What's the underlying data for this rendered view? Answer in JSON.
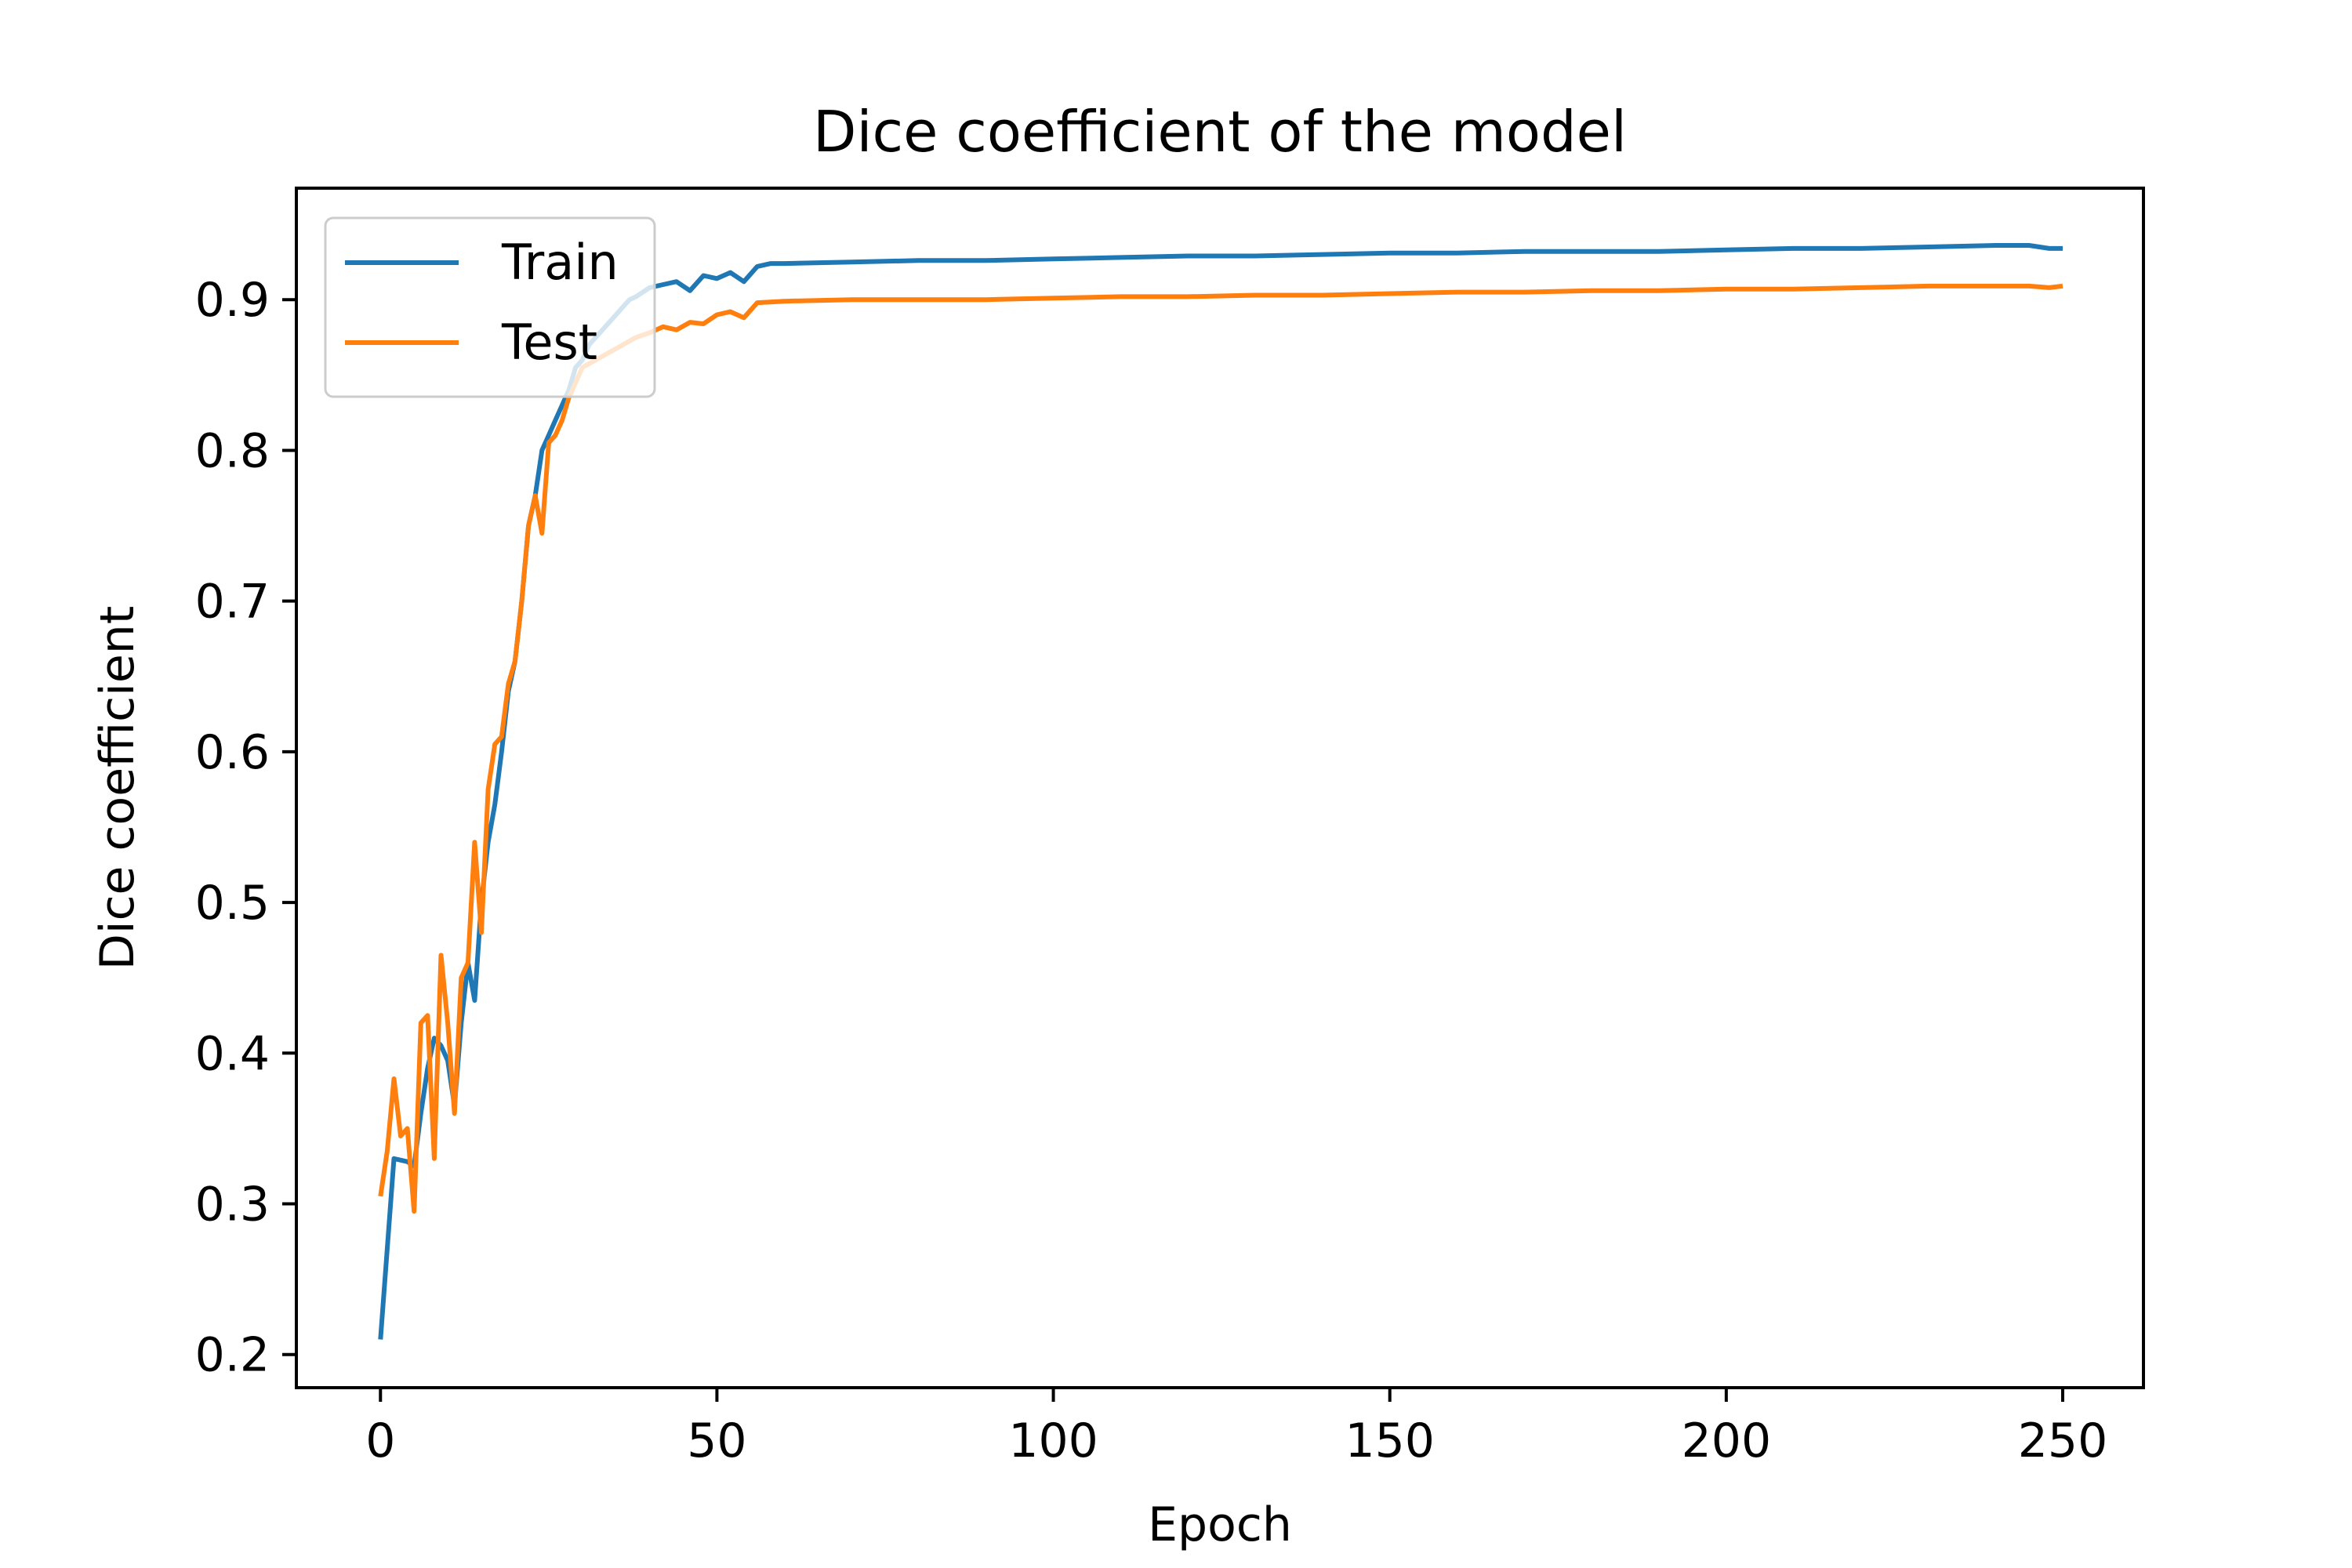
{
  "chart_data": {
    "type": "line",
    "title": "Dice coefficient of the model",
    "xlabel": "Epoch",
    "ylabel": "Dice coefficient",
    "xlim": [
      -12.5,
      262
    ],
    "ylim": [
      0.178,
      0.974
    ],
    "xticks": [
      0,
      50,
      100,
      150,
      200,
      250
    ],
    "yticks": [
      0.2,
      0.3,
      0.4,
      0.5,
      0.6,
      0.7,
      0.8,
      0.9
    ],
    "xtick_labels": [
      "0",
      "50",
      "100",
      "150",
      "200",
      "250"
    ],
    "ytick_labels": [
      "0.2",
      "0.3",
      "0.4",
      "0.5",
      "0.6",
      "0.7",
      "0.8",
      "0.9"
    ],
    "grid": false,
    "legend_position": "top-left",
    "series": [
      {
        "name": "Train",
        "color": "#1f77b4",
        "points": [
          [
            0,
            0.21
          ],
          [
            2,
            0.33
          ],
          [
            4,
            0.328
          ],
          [
            5,
            0.325
          ],
          [
            6,
            0.36
          ],
          [
            7,
            0.39
          ],
          [
            8,
            0.41
          ],
          [
            9,
            0.405
          ],
          [
            10,
            0.395
          ],
          [
            11,
            0.365
          ],
          [
            12,
            0.42
          ],
          [
            13,
            0.46
          ],
          [
            14,
            0.435
          ],
          [
            15,
            0.5
          ],
          [
            16,
            0.54
          ],
          [
            17,
            0.565
          ],
          [
            18,
            0.6
          ],
          [
            19,
            0.64
          ],
          [
            20,
            0.66
          ],
          [
            21,
            0.7
          ],
          [
            22,
            0.75
          ],
          [
            23,
            0.77
          ],
          [
            24,
            0.8
          ],
          [
            25,
            0.81
          ],
          [
            26,
            0.82
          ],
          [
            27,
            0.83
          ],
          [
            28,
            0.84
          ],
          [
            29,
            0.855
          ],
          [
            30,
            0.86
          ],
          [
            31,
            0.87
          ],
          [
            32,
            0.875
          ],
          [
            33,
            0.88
          ],
          [
            34,
            0.885
          ],
          [
            35,
            0.89
          ],
          [
            36,
            0.895
          ],
          [
            37,
            0.9
          ],
          [
            38,
            0.902
          ],
          [
            39,
            0.905
          ],
          [
            40,
            0.908
          ],
          [
            42,
            0.91
          ],
          [
            44,
            0.912
          ],
          [
            46,
            0.906
          ],
          [
            48,
            0.916
          ],
          [
            50,
            0.914
          ],
          [
            52,
            0.918
          ],
          [
            54,
            0.912
          ],
          [
            56,
            0.922
          ],
          [
            58,
            0.924
          ],
          [
            60,
            0.924
          ],
          [
            70,
            0.925
          ],
          [
            80,
            0.926
          ],
          [
            90,
            0.926
          ],
          [
            100,
            0.927
          ],
          [
            110,
            0.928
          ],
          [
            120,
            0.929
          ],
          [
            130,
            0.929
          ],
          [
            140,
            0.93
          ],
          [
            150,
            0.931
          ],
          [
            160,
            0.931
          ],
          [
            170,
            0.932
          ],
          [
            180,
            0.932
          ],
          [
            190,
            0.932
          ],
          [
            200,
            0.933
          ],
          [
            210,
            0.934
          ],
          [
            220,
            0.934
          ],
          [
            230,
            0.935
          ],
          [
            240,
            0.936
          ],
          [
            245,
            0.936
          ],
          [
            248,
            0.934
          ],
          [
            250,
            0.934
          ]
        ]
      },
      {
        "name": "Test",
        "color": "#ff7f0e",
        "points": [
          [
            0,
            0.305
          ],
          [
            1,
            0.335
          ],
          [
            2,
            0.383
          ],
          [
            3,
            0.345
          ],
          [
            4,
            0.35
          ],
          [
            5,
            0.295
          ],
          [
            6,
            0.42
          ],
          [
            7,
            0.425
          ],
          [
            8,
            0.33
          ],
          [
            9,
            0.465
          ],
          [
            10,
            0.42
          ],
          [
            11,
            0.36
          ],
          [
            12,
            0.45
          ],
          [
            13,
            0.46
          ],
          [
            14,
            0.54
          ],
          [
            15,
            0.48
          ],
          [
            16,
            0.575
          ],
          [
            17,
            0.605
          ],
          [
            18,
            0.61
          ],
          [
            19,
            0.645
          ],
          [
            20,
            0.66
          ],
          [
            21,
            0.7
          ],
          [
            22,
            0.75
          ],
          [
            23,
            0.77
          ],
          [
            24,
            0.745
          ],
          [
            25,
            0.805
          ],
          [
            26,
            0.81
          ],
          [
            27,
            0.82
          ],
          [
            28,
            0.835
          ],
          [
            29,
            0.845
          ],
          [
            30,
            0.855
          ],
          [
            32,
            0.86
          ],
          [
            34,
            0.865
          ],
          [
            36,
            0.87
          ],
          [
            38,
            0.875
          ],
          [
            40,
            0.878
          ],
          [
            42,
            0.882
          ],
          [
            44,
            0.88
          ],
          [
            46,
            0.885
          ],
          [
            48,
            0.884
          ],
          [
            50,
            0.89
          ],
          [
            52,
            0.892
          ],
          [
            54,
            0.888
          ],
          [
            56,
            0.898
          ],
          [
            60,
            0.899
          ],
          [
            70,
            0.9
          ],
          [
            80,
            0.9
          ],
          [
            90,
            0.9
          ],
          [
            100,
            0.901
          ],
          [
            110,
            0.902
          ],
          [
            120,
            0.902
          ],
          [
            130,
            0.903
          ],
          [
            140,
            0.903
          ],
          [
            150,
            0.904
          ],
          [
            160,
            0.905
          ],
          [
            170,
            0.905
          ],
          [
            180,
            0.906
          ],
          [
            190,
            0.906
          ],
          [
            200,
            0.907
          ],
          [
            210,
            0.907
          ],
          [
            220,
            0.908
          ],
          [
            230,
            0.909
          ],
          [
            240,
            0.909
          ],
          [
            245,
            0.909
          ],
          [
            248,
            0.908
          ],
          [
            250,
            0.909
          ]
        ]
      }
    ]
  }
}
